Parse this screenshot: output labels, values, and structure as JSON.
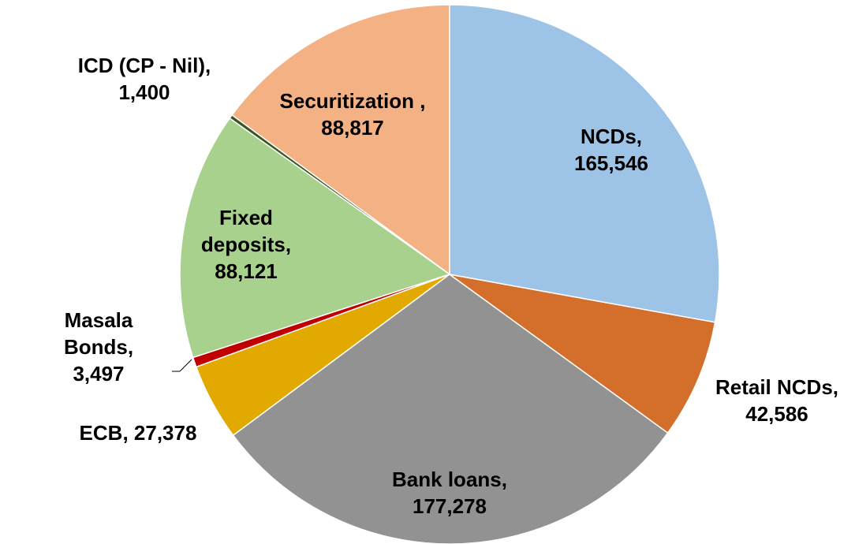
{
  "chart_data": {
    "type": "pie",
    "categories": [
      "NCDs,",
      "Retail NCDs,",
      "Bank loans,",
      "ECB,",
      "Masala Bonds,",
      "Fixed deposits,",
      "ICD (CP - Nil),",
      "Securitization ,"
    ],
    "values": [
      165546,
      42586,
      177278,
      27378,
      3497,
      88121,
      1400,
      88817
    ],
    "value_labels": [
      "165,546",
      "42,586",
      "177,278",
      "27,378",
      "3,497",
      "88,121",
      "1,400",
      "88,817"
    ],
    "colors": [
      "#9dc3e6",
      "#d36f2b",
      "#929292",
      "#e2a900",
      "#c00000",
      "#a9d18e",
      "#375623",
      "#f4b183"
    ]
  }
}
